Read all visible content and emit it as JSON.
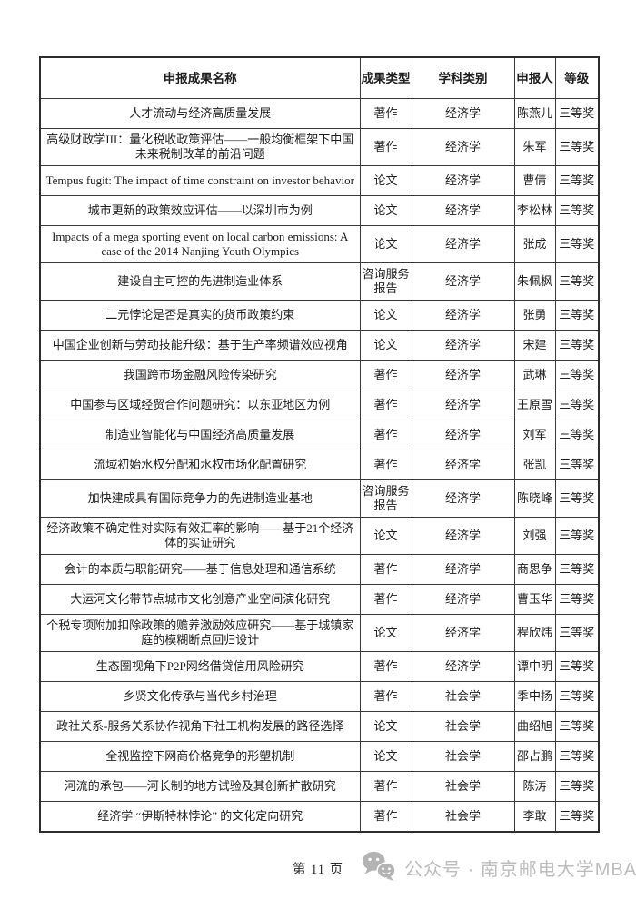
{
  "table": {
    "headers": [
      "申报成果名称",
      "成果类型",
      "学科类别",
      "申报人",
      "等级"
    ],
    "rows": [
      {
        "name": "人才流动与经济高质量发展",
        "type": "著作",
        "subject": "经济学",
        "person": "陈燕儿",
        "grade": "三等奖"
      },
      {
        "name": "高级财政学III：量化税收政策评估——一般均衡框架下中国未来税制改革的前沿问题",
        "type": "著作",
        "subject": "经济学",
        "person": "朱军",
        "grade": "三等奖"
      },
      {
        "name": "Tempus fugit: The impact of time constraint on investor behavior",
        "type": "论文",
        "subject": "经济学",
        "person": "曹倩",
        "grade": "三等奖"
      },
      {
        "name": "城市更新的政策效应评估——以深圳市为例",
        "type": "论文",
        "subject": "经济学",
        "person": "李松林",
        "grade": "三等奖"
      },
      {
        "name": "Impacts of a mega sporting event on local carbon emissions: A case of the 2014 Nanjing Youth Olympics",
        "type": "论文",
        "subject": "经济学",
        "person": "张成",
        "grade": "三等奖"
      },
      {
        "name": "建设自主可控的先进制造业体系",
        "type": "咨询服务报告",
        "subject": "经济学",
        "person": "朱佩枫",
        "grade": "三等奖"
      },
      {
        "name": "二元悖论是否是真实的货币政策约束",
        "type": "论文",
        "subject": "经济学",
        "person": "张勇",
        "grade": "三等奖"
      },
      {
        "name": "中国企业创新与劳动技能升级：基于生产率频谱效应视角",
        "type": "论文",
        "subject": "经济学",
        "person": "宋建",
        "grade": "三等奖"
      },
      {
        "name": "我国跨市场金融风险传染研究",
        "type": "著作",
        "subject": "经济学",
        "person": "武琳",
        "grade": "三等奖"
      },
      {
        "name": "中国参与区域经贸合作问题研究：以东亚地区为例",
        "type": "著作",
        "subject": "经济学",
        "person": "王原雪",
        "grade": "三等奖"
      },
      {
        "name": "制造业智能化与中国经济高质量发展",
        "type": "著作",
        "subject": "经济学",
        "person": "刘军",
        "grade": "三等奖"
      },
      {
        "name": "流域初始水权分配和水权市场化配置研究",
        "type": "著作",
        "subject": "经济学",
        "person": "张凯",
        "grade": "三等奖"
      },
      {
        "name": "加快建成具有国际竞争力的先进制造业基地",
        "type": "咨询服务报告",
        "subject": "经济学",
        "person": "陈晓峰",
        "grade": "三等奖"
      },
      {
        "name": "经济政策不确定性对实际有效汇率的影响——基于21个经济体的实证研究",
        "type": "论文",
        "subject": "经济学",
        "person": "刘强",
        "grade": "三等奖"
      },
      {
        "name": "会计的本质与职能研究——基于信息处理和通信系统",
        "type": "著作",
        "subject": "经济学",
        "person": "商思争",
        "grade": "三等奖"
      },
      {
        "name": "大运河文化带节点城市文化创意产业空间演化研究",
        "type": "著作",
        "subject": "经济学",
        "person": "曹玉华",
        "grade": "三等奖"
      },
      {
        "name": "个税专项附加扣除政策的赡养激励效应研究——基于城镇家庭的模糊断点回归设计",
        "type": "论文",
        "subject": "经济学",
        "person": "程欣炜",
        "grade": "三等奖"
      },
      {
        "name": "生态圈视角下P2P网络借贷信用风险研究",
        "type": "著作",
        "subject": "经济学",
        "person": "谭中明",
        "grade": "三等奖"
      },
      {
        "name": "乡贤文化传承与当代乡村治理",
        "type": "著作",
        "subject": "社会学",
        "person": "季中扬",
        "grade": "三等奖"
      },
      {
        "name": "政社关系-服务关系协作视角下社工机构发展的路径选择",
        "type": "论文",
        "subject": "社会学",
        "person": "曲绍旭",
        "grade": "三等奖"
      },
      {
        "name": "全视监控下网商价格竞争的形塑机制",
        "type": "论文",
        "subject": "社会学",
        "person": "邵占鹏",
        "grade": "三等奖"
      },
      {
        "name": "河流的承包——河长制的地方试验及其创新扩散研究",
        "type": "著作",
        "subject": "社会学",
        "person": "陈涛",
        "grade": "三等奖"
      },
      {
        "name": "经济学 “伊斯特林悖论” 的文化定向研究",
        "type": "著作",
        "subject": "社会学",
        "person": "李敢",
        "grade": "三等奖"
      }
    ]
  },
  "footer": {
    "page_label": "第 11 页"
  },
  "watermark": {
    "icon": "wechat-icon",
    "text": "公众号 · 南京邮电大学MBA",
    "color": "#bdbdbd"
  }
}
